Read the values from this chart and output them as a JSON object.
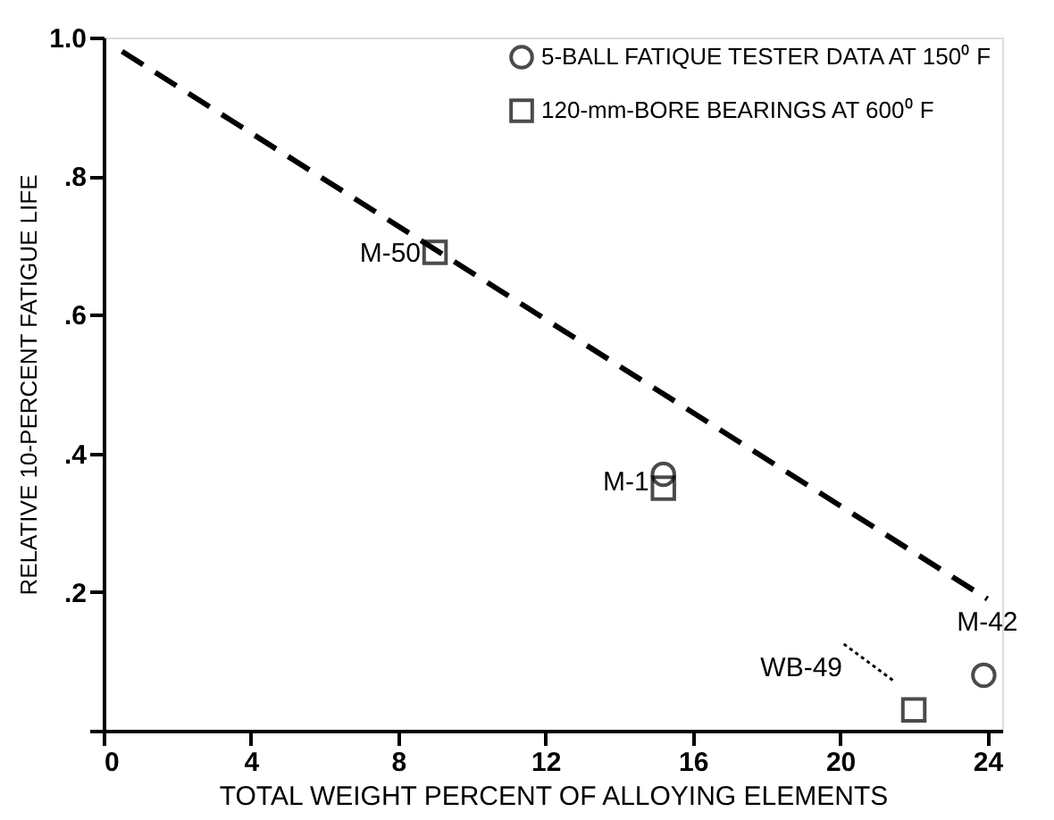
{
  "chart_data": {
    "type": "scatter",
    "xlabel": "TOTAL WEIGHT PERCENT OF ALLOYING ELEMENTS",
    "ylabel": "RELATIVE 10-PERCENT FATIGUE LIFE",
    "xlim": [
      0,
      24.4
    ],
    "xticks": [
      0,
      4,
      8,
      12,
      16,
      20,
      24
    ],
    "ylim": [
      0,
      1.0
    ],
    "yticks": [
      {
        "value": 0,
        "label": null
      },
      {
        "value": 0.2,
        "label": ".2"
      },
      {
        "value": 0.4,
        "label": ".4"
      },
      {
        "value": 0.6,
        "label": ".6"
      },
      {
        "value": 0.8,
        "label": ".8"
      },
      {
        "value": 1.0,
        "label": "1.0"
      }
    ],
    "grid": false,
    "legend": "top right",
    "series": [
      {
        "type": "line",
        "x": [
          0.5,
          24
        ],
        "values": [
          0.98,
          0.19
        ],
        "color": "#000000",
        "line_style": "dashed",
        "marker": "none"
      },
      {
        "name": "5-BALL FATIQUE TESTER DATA AT 150⁰ F",
        "x": [
          15.2,
          23.9
        ],
        "values": [
          0.37,
          0.08
        ],
        "color": "#000000",
        "marker": "circle"
      },
      {
        "name": "120-mm-BORE BEARINGS AT 600⁰ F",
        "x": [
          9.0,
          15.2,
          22.0
        ],
        "values": [
          0.69,
          0.35,
          0.03
        ],
        "color": "#000000",
        "marker": "square"
      }
    ],
    "annotations": [
      {
        "text": "M-50",
        "x": 9.0,
        "y": 0.69
      },
      {
        "text": "M-1",
        "x": 15.2,
        "y": 0.36
      },
      {
        "text": "WB-49",
        "x": 22.0,
        "y": 0.03
      },
      {
        "text": "M-42",
        "x": 23.9,
        "y": 0.08
      }
    ]
  }
}
